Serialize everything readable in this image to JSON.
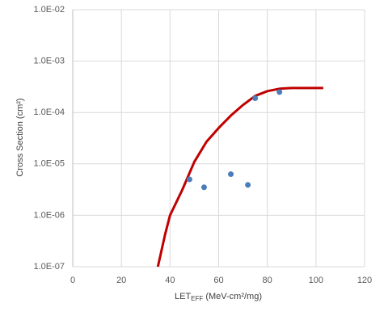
{
  "chart_data": {
    "type": "scatter",
    "ylabel": "Cross Section (cm²)",
    "xlabel": "LET",
    "xlabel_sub": "EFF",
    "xlabel_rest": " (MeV-cm²/mg)",
    "xlim": [
      0,
      120
    ],
    "xticks": [
      0,
      20,
      40,
      60,
      80,
      100,
      120
    ],
    "ylim": [
      1e-07,
      0.01
    ],
    "log_y": true,
    "grid": true,
    "yticks": [
      {
        "value": 1e-07,
        "label": "1.0E-07"
      },
      {
        "value": 1e-06,
        "label": "1.0E-06"
      },
      {
        "value": 1e-05,
        "label": "1.0E-05"
      },
      {
        "value": 0.0001,
        "label": "1.0E-04"
      },
      {
        "value": 0.001,
        "label": "1.0E-03"
      },
      {
        "value": 0.01,
        "label": "1.0E-02"
      }
    ],
    "series": [
      {
        "style": "line",
        "color": "#c00000",
        "x": [
          35,
          38,
          40,
          45,
          50,
          55,
          60,
          65,
          70,
          75,
          80,
          85,
          90,
          100,
          103
        ],
        "values": [
          1e-07,
          4.3e-07,
          1e-06,
          3.1e-06,
          1.1e-05,
          2.7e-05,
          5e-05,
          8.7e-05,
          0.00014,
          0.00021,
          0.00026,
          0.00029,
          0.0003,
          0.0003,
          0.0003
        ]
      },
      {
        "style": "markers",
        "color": "#4a7ebb",
        "x": [
          48,
          54,
          65,
          72,
          75,
          85
        ],
        "values": [
          5e-06,
          3.5e-06,
          6.3e-06,
          3.9e-06,
          0.00019,
          0.00025
        ]
      }
    ]
  }
}
